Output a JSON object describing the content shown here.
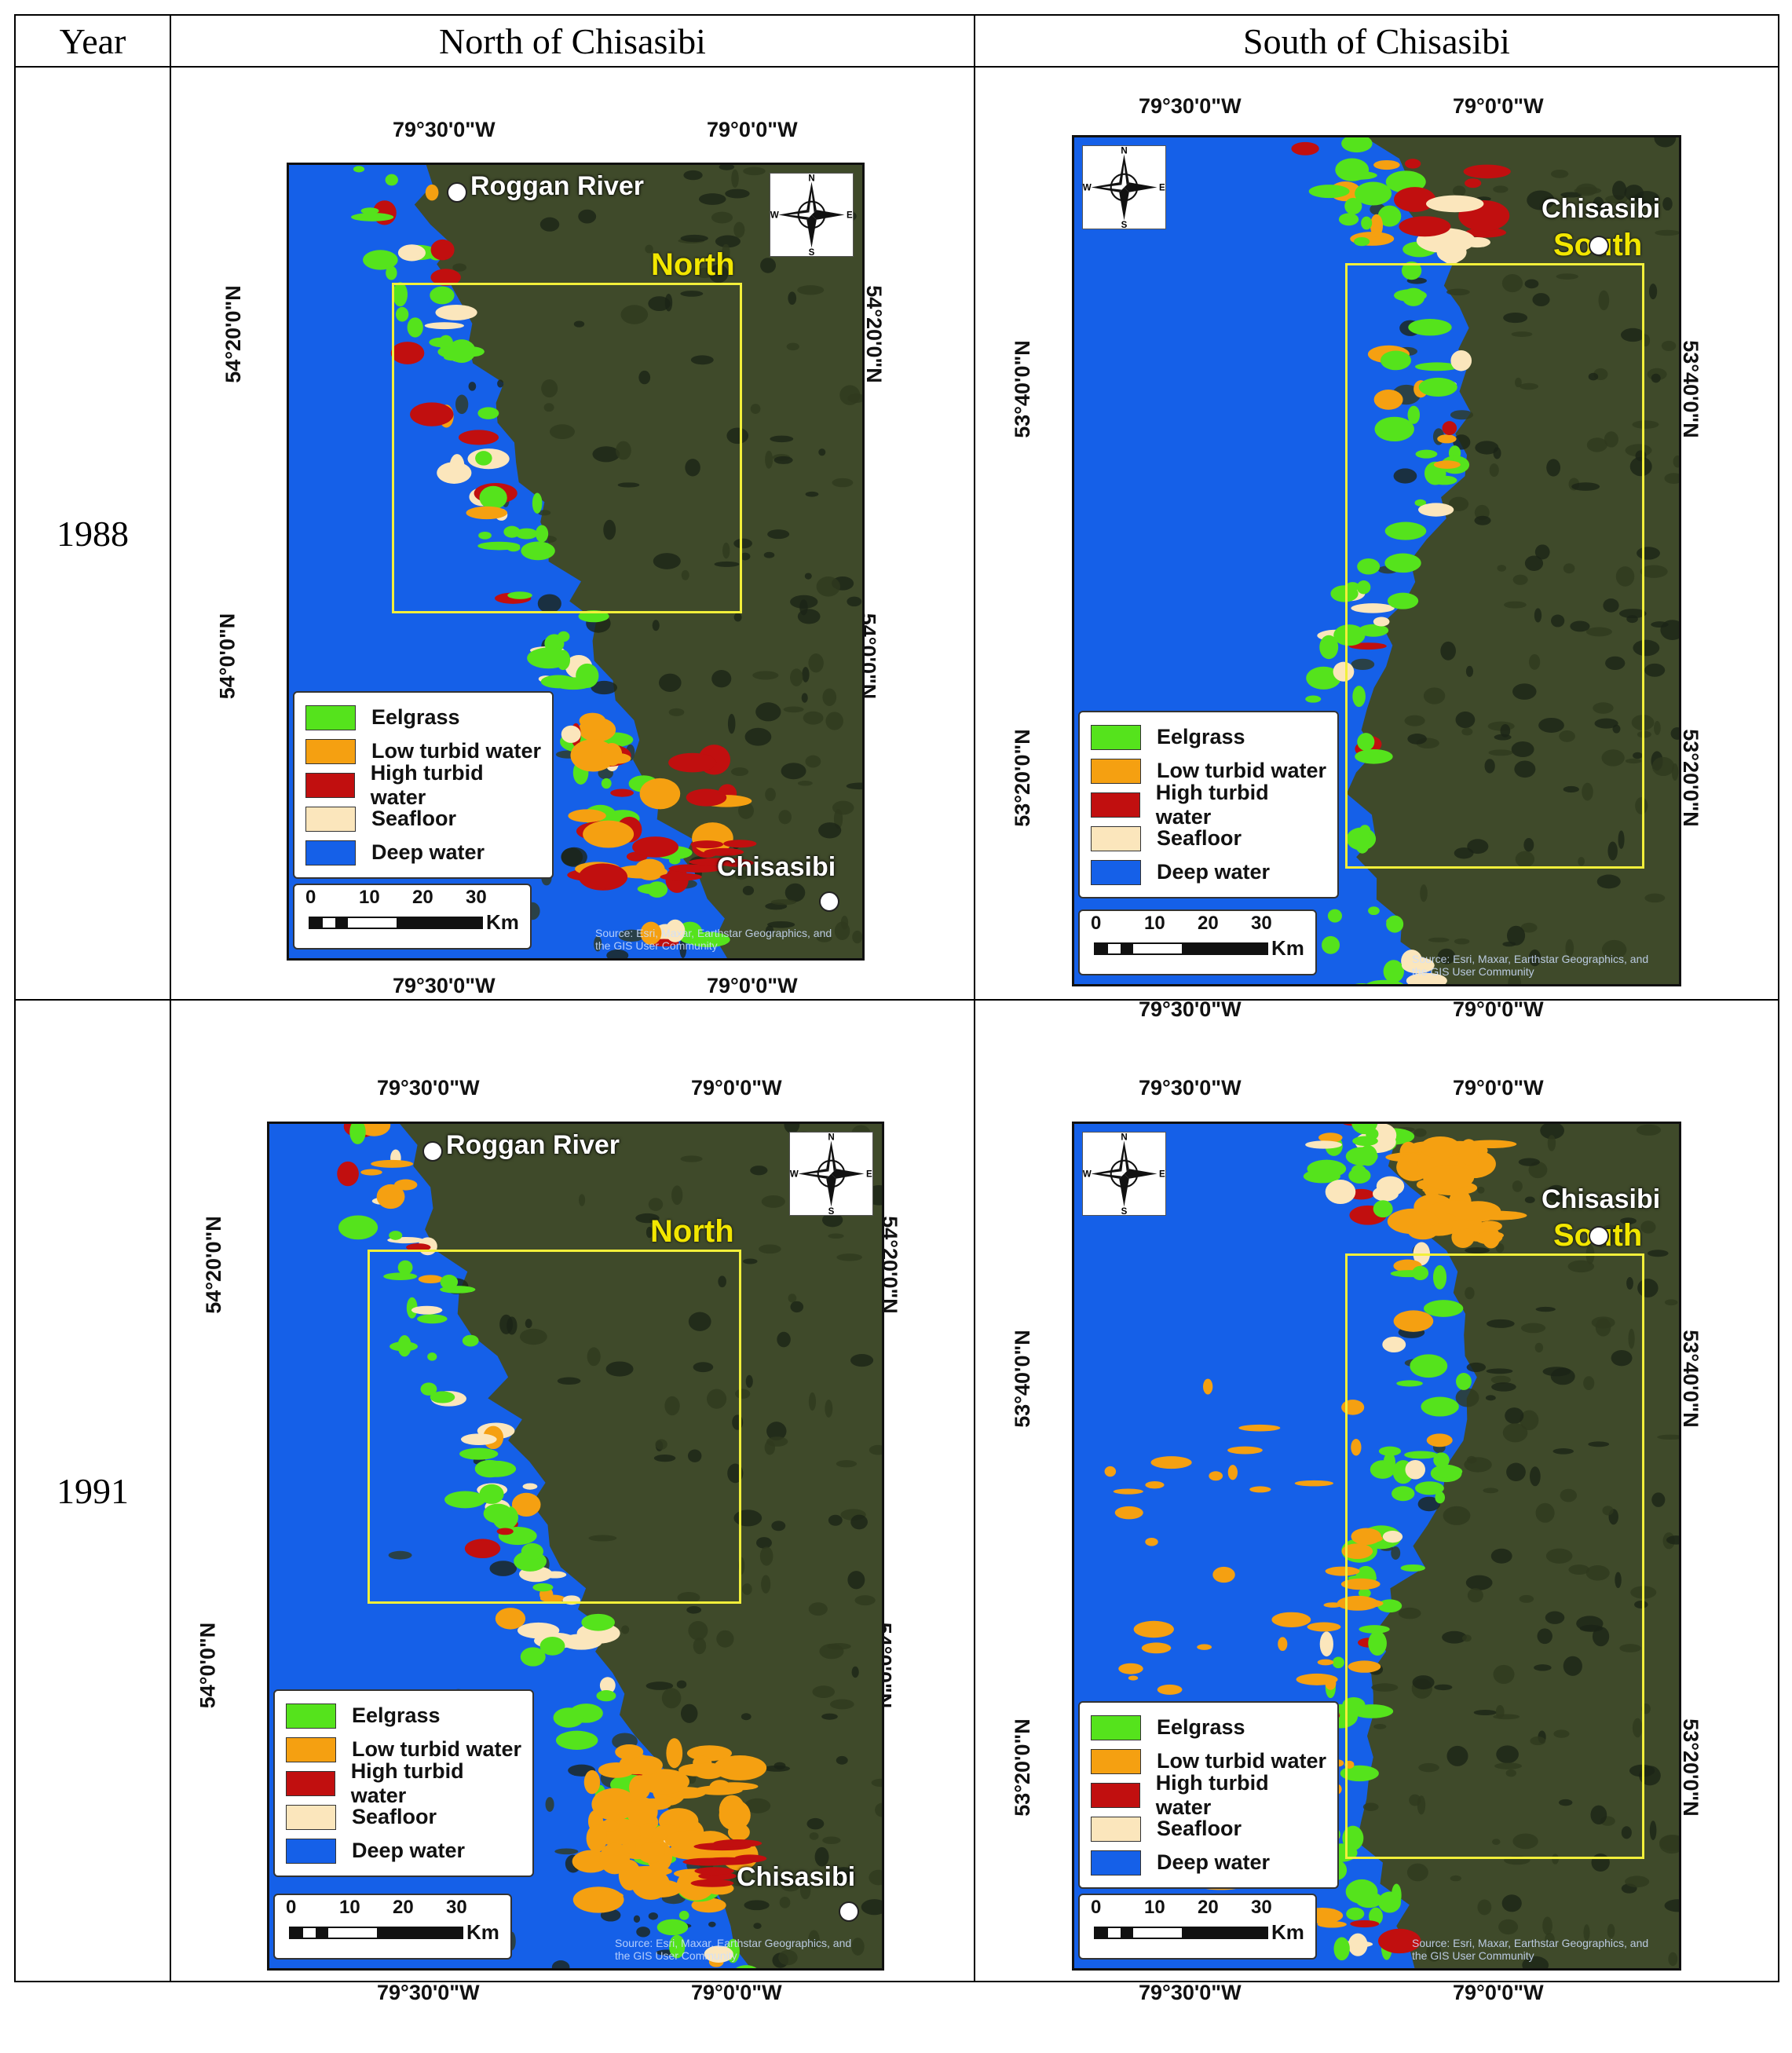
{
  "table": {
    "headers": [
      "Year",
      "North of Chisasibi",
      "South of Chisasibi"
    ],
    "rows": [
      {
        "year": "1988"
      },
      {
        "year": "1991"
      }
    ]
  },
  "map_labels": {
    "lon_west": "79°30'0\"W",
    "lon_east": "79°0'0\"W",
    "north_lat_top": "54°20'0\"N",
    "north_lat_bottom": "54°0'0\"N",
    "south_lat_top": "53°40'0\"N",
    "south_lat_bottom": "53°20'0\"N",
    "roggan": "Roggan River",
    "chisasibi": "Chisasibi",
    "north_box": "North",
    "south_box": "South",
    "source": "Source: Esri, Maxar, Earthstar Geographics, and the GIS User Community"
  },
  "legend": [
    {
      "label": "Eelgrass",
      "color": "#55e31c"
    },
    {
      "label": "Low turbid water",
      "color": "#f5a011"
    },
    {
      "label": "High turbid water",
      "color": "#c10f0f"
    },
    {
      "label": "Seafloor",
      "color": "#fbe6bc"
    },
    {
      "label": "Deep water",
      "color": "#1560e8"
    }
  ],
  "scalebar": {
    "ticks": [
      "0",
      "10",
      "20",
      "30"
    ],
    "unit": "Km"
  },
  "compass": {
    "n": "N",
    "s": "S",
    "e": "E",
    "w": "W"
  },
  "colors": {
    "land": "#3f4a2a",
    "deep_water": "#1560e8",
    "study_box": "#f2ef3a"
  }
}
